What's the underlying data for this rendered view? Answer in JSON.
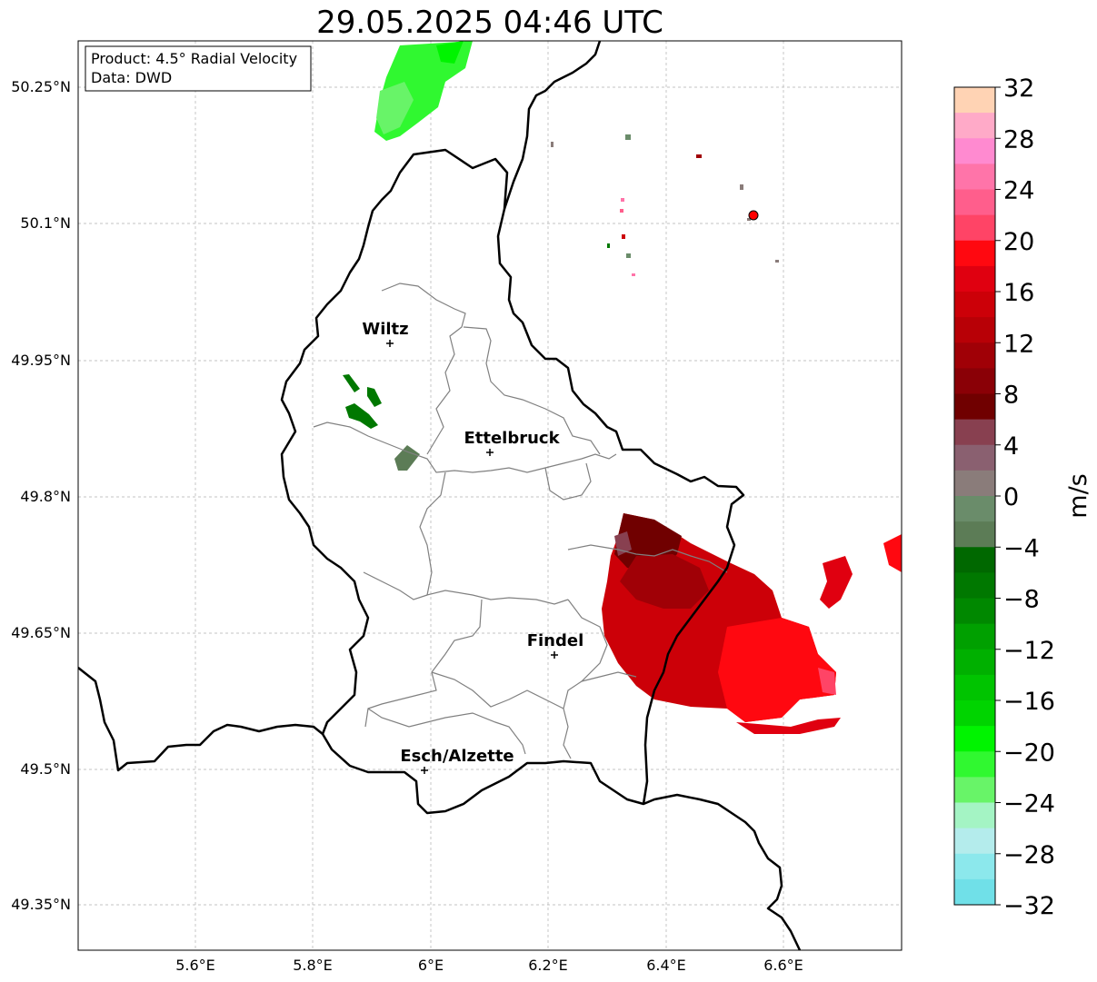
{
  "title": "29.05.2025 04:46 UTC",
  "info": {
    "product": "Product: 4.5° Radial Velocity",
    "data": "Data: DWD"
  },
  "lat_ticks": [
    "50.25°N",
    "50.1°N",
    "49.95°N",
    "49.8°N",
    "49.65°N",
    "49.5°N",
    "49.35°N"
  ],
  "lon_ticks": [
    "5.6°E",
    "5.8°E",
    "6°E",
    "6.2°E",
    "6.4°E",
    "6.6°E"
  ],
  "cities": [
    {
      "name": "Wiltz"
    },
    {
      "name": "Ettelbruck"
    },
    {
      "name": "Findel"
    },
    {
      "name": "Esch/Alzette"
    }
  ],
  "colorbar": {
    "unit": "m/s",
    "ticks": [
      "32",
      "28",
      "24",
      "20",
      "16",
      "12",
      "8",
      "4",
      "0",
      "−4",
      "−8",
      "−12",
      "−16",
      "−20",
      "−24",
      "−28",
      "−32"
    ],
    "min": -32,
    "max": 32,
    "colors": [
      "#ffd3b4",
      "#ffaac8",
      "#ff8ad0",
      "#ff74a9",
      "#ff5e8c",
      "#ff4466",
      "#ff0810",
      "#e00010",
      "#cc0008",
      "#b80006",
      "#a00006",
      "#8a0006",
      "#700000",
      "#884050",
      "#8a6070",
      "#8a7c7a",
      "#6a8c6a",
      "#5c7c56",
      "#006800",
      "#007800",
      "#008800",
      "#00a000",
      "#00b000",
      "#00c400",
      "#00d400",
      "#00f400",
      "#30f830",
      "#68f468",
      "#a4f4c4",
      "#b4ecec",
      "#8ce8ec",
      "#70e0e8"
    ]
  },
  "colors": {
    "border": "#000000",
    "district": "#808080",
    "grid": "#b0b0b0",
    "radar_site": "#ff0000"
  }
}
